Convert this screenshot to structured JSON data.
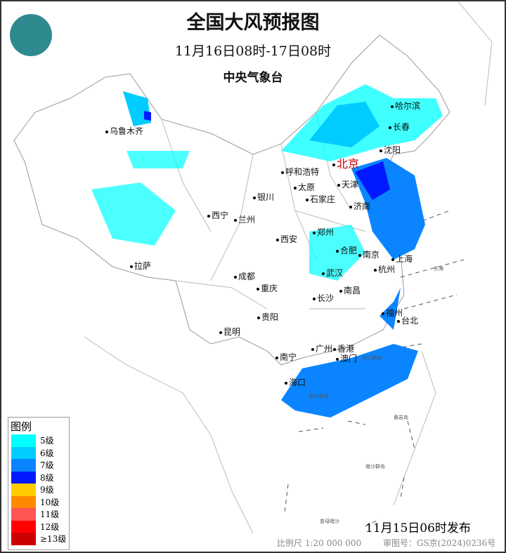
{
  "header": {
    "title": "全国大风预报图",
    "period": "11月16日08时-17日08时",
    "agency": "中央气象台",
    "logo_text": "中央气象台"
  },
  "cities": [
    {
      "name": "乌鲁木齐"
    },
    {
      "name": "哈尔滨"
    },
    {
      "name": "长春"
    },
    {
      "name": "沈阳"
    },
    {
      "name": "北京",
      "capital": true
    },
    {
      "name": "呼和浩特"
    },
    {
      "name": "天津"
    },
    {
      "name": "太原"
    },
    {
      "name": "石家庄"
    },
    {
      "name": "银川"
    },
    {
      "name": "西宁"
    },
    {
      "name": "兰州"
    },
    {
      "name": "济南"
    },
    {
      "name": "郑州"
    },
    {
      "name": "西安"
    },
    {
      "name": "合肥"
    },
    {
      "name": "南京"
    },
    {
      "name": "上海"
    },
    {
      "name": "拉萨"
    },
    {
      "name": "成都"
    },
    {
      "name": "武汉"
    },
    {
      "name": "杭州"
    },
    {
      "name": "重庆"
    },
    {
      "name": "南昌"
    },
    {
      "name": "长沙"
    },
    {
      "name": "福州"
    },
    {
      "name": "台北"
    },
    {
      "name": "贵阳"
    },
    {
      "name": "昆明"
    },
    {
      "name": "广州"
    },
    {
      "name": "香港"
    },
    {
      "name": "澳门"
    },
    {
      "name": "南宁"
    },
    {
      "name": "海口"
    }
  ],
  "sea_labels": [
    "东海",
    "东沙群岛",
    "西沙群岛",
    "南沙群岛",
    "黄岩岛",
    "曾母暗沙"
  ],
  "legend": {
    "title": "图例",
    "items": [
      {
        "label": "5级",
        "color": "#00ffff"
      },
      {
        "label": "6级",
        "color": "#00ccff"
      },
      {
        "label": "7级",
        "color": "#0a85ff"
      },
      {
        "label": "8级",
        "color": "#0019ff"
      },
      {
        "label": "9级",
        "color": "#ffcc00"
      },
      {
        "label": "10级",
        "color": "#ff8800"
      },
      {
        "label": "11级",
        "color": "#ff5555"
      },
      {
        "label": "12级",
        "color": "#ff0000"
      },
      {
        "label": "≥13级",
        "color": "#cc0000"
      }
    ]
  },
  "footer": {
    "issued": "11月15日06时发布",
    "scale": "比例尺 1:20 000 000",
    "review_no": "审图号：GS京(2024)0236号"
  }
}
